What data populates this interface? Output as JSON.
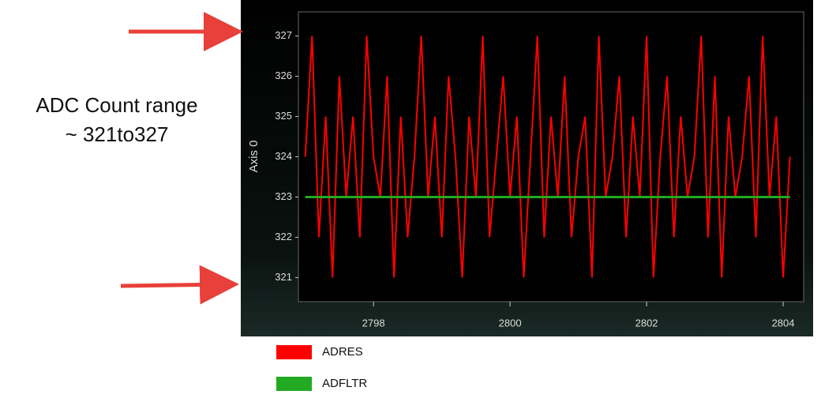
{
  "chart_data": {
    "type": "line",
    "y_label": "Axis 0",
    "annotations": [
      "ADC Count range",
      "~ 321to327"
    ],
    "ylim": [
      320.4,
      327.6
    ],
    "yticks": [
      321,
      322,
      323,
      324,
      325,
      326,
      327
    ],
    "xlim": [
      2796.9,
      2804.3
    ],
    "xticks": [
      2798,
      2800,
      2802,
      2804
    ],
    "legend": "bottom",
    "series": [
      {
        "name": "ADRES",
        "color": "#ff0000",
        "x": [
          2797.0,
          2797.1,
          2797.2,
          2797.3,
          2797.4,
          2797.5,
          2797.6,
          2797.7,
          2797.8,
          2797.9,
          2798.0,
          2798.1,
          2798.2,
          2798.3,
          2798.4,
          2798.5,
          2798.6,
          2798.7,
          2798.8,
          2798.9,
          2799.0,
          2799.1,
          2799.2,
          2799.3,
          2799.4,
          2799.5,
          2799.6,
          2799.7,
          2799.8,
          2799.9,
          2800.0,
          2800.1,
          2800.2,
          2800.3,
          2800.4,
          2800.5,
          2800.6,
          2800.7,
          2800.8,
          2800.9,
          2801.0,
          2801.1,
          2801.2,
          2801.3,
          2801.4,
          2801.5,
          2801.6,
          2801.7,
          2801.8,
          2801.9,
          2802.0,
          2802.1,
          2802.2,
          2802.3,
          2802.4,
          2802.5,
          2802.6,
          2802.7,
          2802.8,
          2802.9,
          2803.0,
          2803.1,
          2803.2,
          2803.3,
          2803.4,
          2803.5,
          2803.6,
          2803.7,
          2803.8,
          2803.9,
          2804.0,
          2804.1
        ],
        "values": [
          324,
          327,
          322,
          325,
          321,
          326,
          323,
          325,
          322,
          327,
          324,
          323,
          326,
          321,
          325,
          322,
          324,
          327,
          323,
          325,
          322,
          326,
          324,
          321,
          325,
          323,
          327,
          322,
          324,
          326,
          323,
          325,
          321,
          324,
          327,
          322,
          325,
          323,
          326,
          322,
          324,
          325,
          321,
          327,
          323,
          324,
          326,
          322,
          325,
          323,
          327,
          321,
          324,
          326,
          322,
          325,
          323,
          324,
          327,
          322,
          326,
          321,
          325,
          323,
          324,
          326,
          322,
          327,
          323,
          325,
          321,
          324
        ]
      },
      {
        "name": "ADFLTR",
        "color": "#22aa22",
        "x": [
          2797.0,
          2804.1
        ],
        "values": [
          323,
          323
        ]
      }
    ]
  }
}
